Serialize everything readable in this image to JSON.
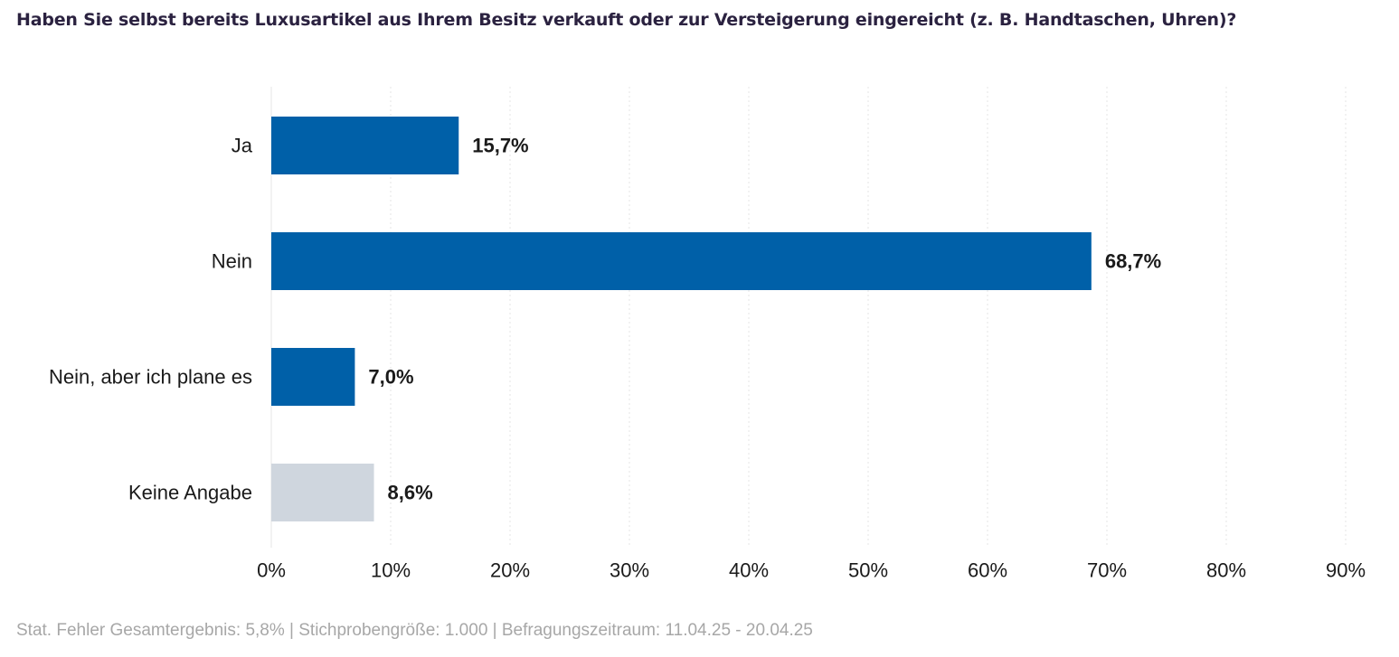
{
  "title": "Haben Sie selbst bereits Luxusartikel aus Ihrem Besitz verkauft oder zur Versteigerung eingereicht (z. B. Handtaschen, Uhren)?",
  "footer": "Stat. Fehler Gesamtergebnis: 5,8% | Stichprobengröße: 1.000 | Befragungszeitraum: 11.04.25 - 20.04.25",
  "chart_data": {
    "type": "bar",
    "orientation": "horizontal",
    "categories": [
      "Ja",
      "Nein",
      "Nein, aber ich plane es",
      "Keine Angabe"
    ],
    "values": [
      15.7,
      68.7,
      7.0,
      8.6
    ],
    "value_labels": [
      "15,7%",
      "68,7%",
      "7,0%",
      "8,6%"
    ],
    "colors": [
      "#0060a8",
      "#0060a8",
      "#0060a8",
      "#cfd6de"
    ],
    "xlim": [
      0,
      90
    ],
    "xticks": [
      0,
      10,
      20,
      30,
      40,
      50,
      60,
      70,
      80,
      90
    ],
    "xtick_labels": [
      "0%",
      "10%",
      "20%",
      "30%",
      "40%",
      "50%",
      "60%",
      "70%",
      "80%",
      "90%"
    ],
    "grid": true,
    "legend": "none"
  }
}
